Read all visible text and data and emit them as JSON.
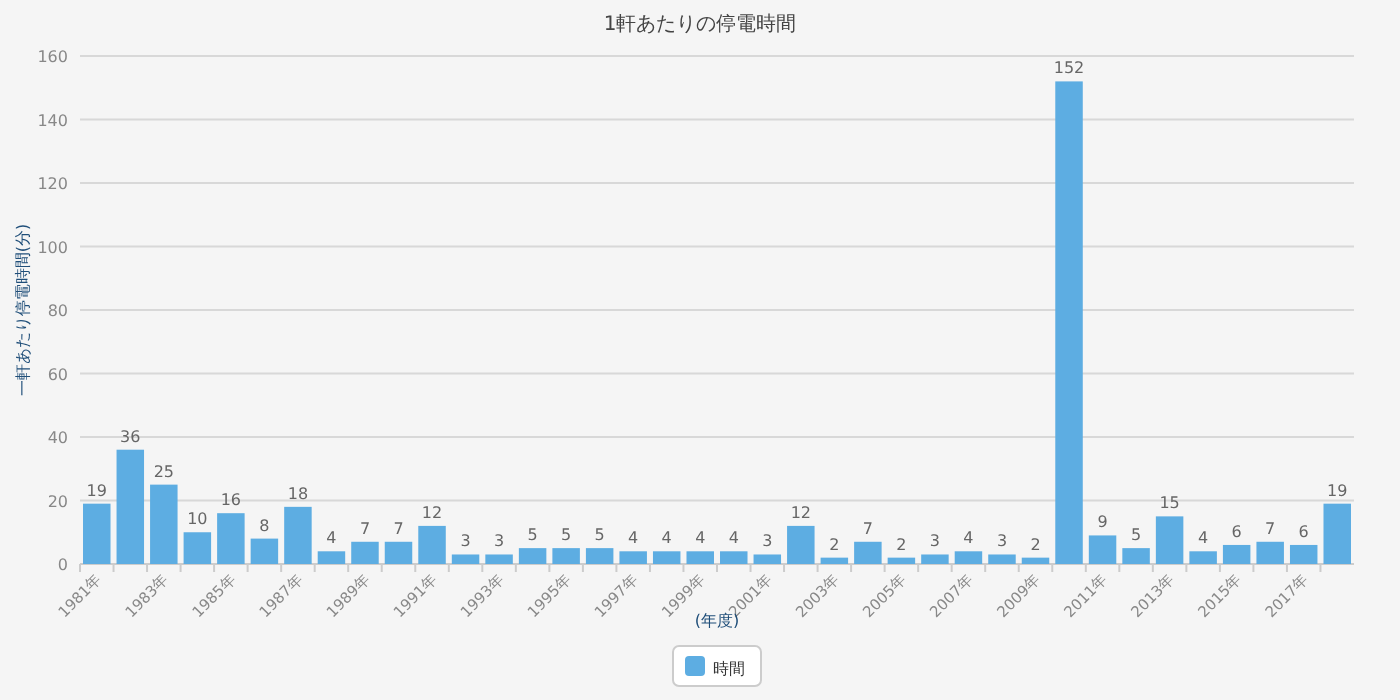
{
  "chart_data": {
    "type": "bar",
    "title": "1軒あたりの停電時間",
    "xlabel": "(年度)",
    "ylabel": "一軒あたり停電時間(分)",
    "categories": [
      "1981年",
      null,
      "1983年",
      null,
      "1985年",
      null,
      "1987年",
      null,
      "1989年",
      null,
      "1991年",
      null,
      "1993年",
      null,
      "1995年",
      null,
      "1997年",
      null,
      "1999年",
      null,
      "2001年",
      null,
      "2003年",
      null,
      "2005年",
      null,
      "2007年",
      null,
      "2009年",
      null,
      "2011年",
      null,
      "2013年",
      null,
      "2015年",
      null,
      "2017年",
      null
    ],
    "series": [
      {
        "name": "時間",
        "color": "#5dade2",
        "values": [
          19,
          36,
          25,
          10,
          16,
          8,
          18,
          4,
          7,
          7,
          12,
          3,
          3,
          5,
          5,
          5,
          4,
          4,
          4,
          4,
          3,
          12,
          2,
          7,
          2,
          3,
          4,
          3,
          2,
          152,
          9,
          5,
          15,
          4,
          6,
          7,
          6,
          19
        ]
      }
    ],
    "ylim": [
      0,
      160
    ],
    "yticks": [
      0,
      20,
      40,
      60,
      80,
      100,
      120,
      140,
      160
    ],
    "grid": "y",
    "legend": "bottom",
    "data_labels": true
  }
}
